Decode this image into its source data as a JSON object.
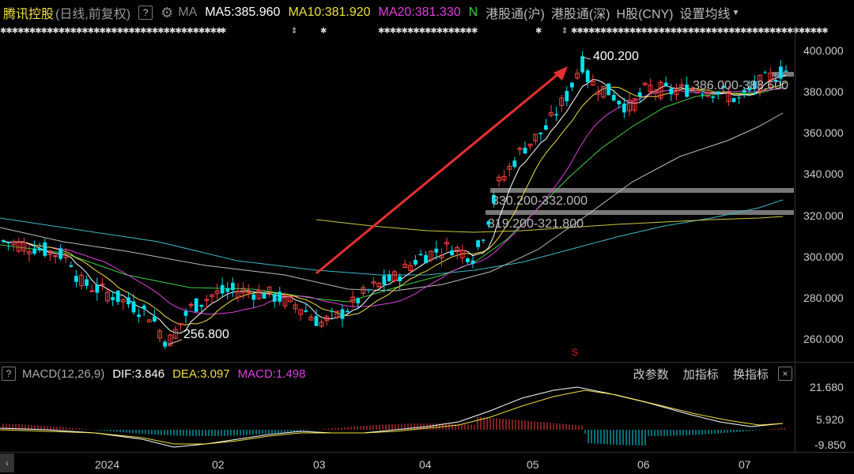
{
  "header": {
    "stock_name": "腾讯控股",
    "subtitle": "(日线,前复权)",
    "help": "?",
    "ma_label": "MA",
    "ma5": "MA5:385.960",
    "ma10": "MA10:381.920",
    "ma20": "MA20:381.330",
    "ma_extra": "N",
    "tabs": [
      "港股通(沪)",
      "港股通(深)",
      "H股(CNY)",
      "设置均线"
    ]
  },
  "price_axis": [
    "400.000",
    "380.000",
    "360.000",
    "340.000",
    "320.000",
    "300.000",
    "280.000",
    "260.000"
  ],
  "annotations": {
    "high": "400.200",
    "low": "256.800",
    "gap1": "330.200-332.000",
    "gap2": "319.200-321.800",
    "range": "386.000-388.600"
  },
  "macd": {
    "button": "?",
    "label": "MACD(12,26,9)",
    "dif": "DIF:3.846",
    "dea": "DEA:3.097",
    "macd": "MACD:1.498",
    "links": [
      "改参数",
      "加指标",
      "换指标"
    ],
    "close": "×",
    "axis": [
      "21.680",
      "5.920",
      "-9.850"
    ]
  },
  "x_axis": [
    "2024",
    "02",
    "03",
    "04",
    "05",
    "06",
    "07"
  ],
  "colors": {
    "up": "#ff4040",
    "down": "#00e0f0",
    "ma5": "#ffffff",
    "ma10": "#f0e040",
    "ma20": "#e040e0",
    "ma60": "#40d040"
  }
}
